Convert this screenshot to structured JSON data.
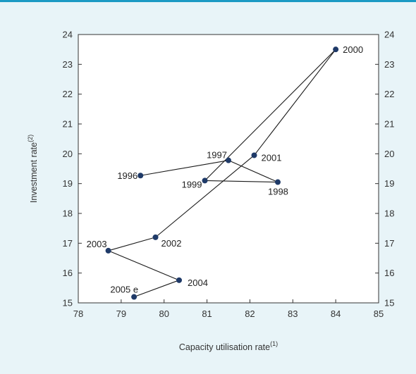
{
  "chart_data": {
    "type": "scatter",
    "connected": true,
    "xlabel": "Capacity utilisation rate",
    "xlabel_note": "(1)",
    "ylabel": "Investment rate",
    "ylabel_note": "(2)",
    "xlim": [
      78,
      85
    ],
    "ylim": [
      15,
      24
    ],
    "x_ticks": [
      78,
      79,
      80,
      81,
      82,
      83,
      84,
      85
    ],
    "y_ticks": [
      15,
      16,
      17,
      18,
      19,
      20,
      21,
      22,
      23,
      24
    ],
    "y_axis_right_mirror": true,
    "grid": false,
    "series": [
      {
        "points": [
          {
            "label": "1996",
            "x": 79.45,
            "y": 19.27
          },
          {
            "label": "1997",
            "x": 81.5,
            "y": 19.78
          },
          {
            "label": "1998",
            "x": 82.65,
            "y": 19.05
          },
          {
            "label": "1999",
            "x": 80.95,
            "y": 19.1
          },
          {
            "label": "2000",
            "x": 84.0,
            "y": 23.5
          },
          {
            "label": "2001",
            "x": 82.1,
            "y": 19.95
          },
          {
            "label": "2002",
            "x": 79.8,
            "y": 17.2
          },
          {
            "label": "2003",
            "x": 78.7,
            "y": 16.75
          },
          {
            "label": "2004",
            "x": 80.35,
            "y": 15.76
          },
          {
            "label": "2005 e",
            "x": 79.3,
            "y": 15.2
          }
        ]
      }
    ],
    "colors": {
      "background": "#e8f4f8",
      "plot_background": "#ffffff",
      "marker": "#1f3a68",
      "line": "#1a1a1a",
      "top_rule": "#1b9ac4"
    }
  }
}
